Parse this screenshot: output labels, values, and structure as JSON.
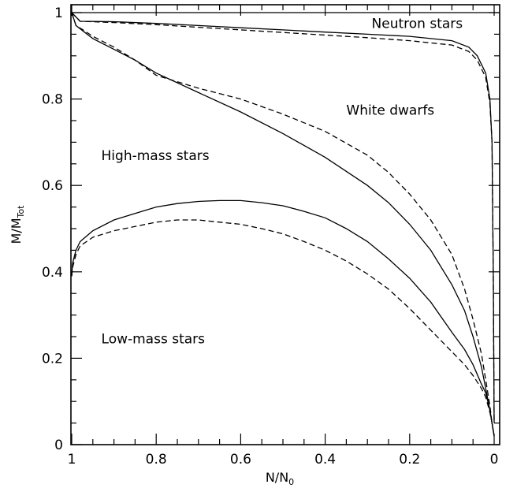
{
  "chart_data": {
    "type": "line",
    "xlabel": {
      "main": "N/N",
      "sub": "0"
    },
    "ylabel": {
      "main": "M/M",
      "sub": "Tot"
    },
    "xlim": [
      1,
      0
    ],
    "ylim": [
      0,
      1
    ],
    "x_ticks": [
      "1",
      "0.8",
      "0.6",
      "0.4",
      "0.2",
      "0"
    ],
    "y_ticks": [
      "0",
      "0.2",
      "0.4",
      "0.6",
      "0.8",
      "1"
    ],
    "annotations": [
      {
        "text": "Neutron stars",
        "x": 0.29,
        "y": 0.975
      },
      {
        "text": "White dwarfs",
        "x": 0.35,
        "y": 0.775
      },
      {
        "text": "High-mass stars",
        "x": 0.93,
        "y": 0.67
      },
      {
        "text": "Low-mass stars",
        "x": 0.93,
        "y": 0.245
      }
    ],
    "series": [
      {
        "style": "solid",
        "x": [
          1,
          0.98,
          0.9,
          0.8,
          0.7,
          0.6,
          0.5,
          0.4,
          0.3,
          0.2,
          0.15,
          0.1,
          0.06,
          0.04,
          0.02,
          0.01,
          0.005,
          0.002,
          0.0
        ],
        "y": [
          1,
          0.98,
          0.979,
          0.975,
          0.97,
          0.965,
          0.96,
          0.955,
          0.95,
          0.945,
          0.94,
          0.935,
          0.92,
          0.9,
          0.86,
          0.8,
          0.7,
          0.4,
          0.05
        ]
      },
      {
        "style": "dashed",
        "x": [
          1,
          0.98,
          0.9,
          0.8,
          0.7,
          0.6,
          0.5,
          0.4,
          0.3,
          0.2,
          0.15,
          0.1,
          0.06,
          0.04,
          0.02,
          0.01,
          0.005,
          0.002,
          0.0
        ],
        "y": [
          1,
          0.98,
          0.977,
          0.972,
          0.966,
          0.96,
          0.954,
          0.948,
          0.942,
          0.935,
          0.93,
          0.925,
          0.91,
          0.89,
          0.85,
          0.79,
          0.7,
          0.4,
          0.05
        ]
      },
      {
        "style": "solid",
        "x": [
          1,
          0.99,
          0.97,
          0.95,
          0.9,
          0.85,
          0.8,
          0.7,
          0.6,
          0.5,
          0.4,
          0.3,
          0.25,
          0.2,
          0.15,
          0.1,
          0.07,
          0.05,
          0.03,
          0.02,
          0.01,
          0.005,
          0.0
        ],
        "y": [
          1,
          0.97,
          0.955,
          0.94,
          0.915,
          0.89,
          0.86,
          0.815,
          0.77,
          0.72,
          0.665,
          0.6,
          0.56,
          0.51,
          0.45,
          0.37,
          0.31,
          0.25,
          0.18,
          0.13,
          0.08,
          0.05,
          0.02
        ]
      },
      {
        "style": "dashed",
        "x": [
          1,
          0.99,
          0.97,
          0.95,
          0.9,
          0.85,
          0.8,
          0.7,
          0.6,
          0.5,
          0.4,
          0.3,
          0.25,
          0.2,
          0.15,
          0.1,
          0.07,
          0.05,
          0.03,
          0.02,
          0.01,
          0.005,
          0.0
        ],
        "y": [
          1,
          0.97,
          0.958,
          0.945,
          0.92,
          0.89,
          0.855,
          0.825,
          0.8,
          0.765,
          0.725,
          0.67,
          0.63,
          0.58,
          0.52,
          0.44,
          0.36,
          0.29,
          0.21,
          0.15,
          0.09,
          0.05,
          0.02
        ]
      },
      {
        "style": "solid",
        "x": [
          1,
          0.998,
          0.99,
          0.98,
          0.95,
          0.9,
          0.85,
          0.8,
          0.75,
          0.7,
          0.65,
          0.6,
          0.55,
          0.5,
          0.45,
          0.4,
          0.35,
          0.3,
          0.25,
          0.2,
          0.15,
          0.1,
          0.07,
          0.05,
          0.03,
          0.02,
          0.01,
          0.005,
          0.0
        ],
        "y": [
          0.39,
          0.42,
          0.45,
          0.47,
          0.495,
          0.52,
          0.535,
          0.55,
          0.558,
          0.563,
          0.565,
          0.565,
          0.56,
          0.553,
          0.54,
          0.525,
          0.5,
          0.47,
          0.43,
          0.385,
          0.33,
          0.26,
          0.22,
          0.185,
          0.14,
          0.12,
          0.08,
          0.05,
          0.02
        ]
      },
      {
        "style": "dashed",
        "x": [
          1,
          0.998,
          0.99,
          0.98,
          0.95,
          0.9,
          0.85,
          0.8,
          0.75,
          0.7,
          0.65,
          0.6,
          0.55,
          0.5,
          0.45,
          0.4,
          0.35,
          0.3,
          0.25,
          0.2,
          0.15,
          0.1,
          0.07,
          0.05,
          0.03,
          0.02,
          0.01,
          0.005,
          0.0
        ],
        "y": [
          0.39,
          0.41,
          0.44,
          0.46,
          0.48,
          0.495,
          0.505,
          0.515,
          0.52,
          0.52,
          0.515,
          0.51,
          0.5,
          0.488,
          0.47,
          0.45,
          0.425,
          0.395,
          0.36,
          0.315,
          0.265,
          0.215,
          0.185,
          0.16,
          0.13,
          0.11,
          0.075,
          0.05,
          0.02
        ]
      }
    ]
  }
}
